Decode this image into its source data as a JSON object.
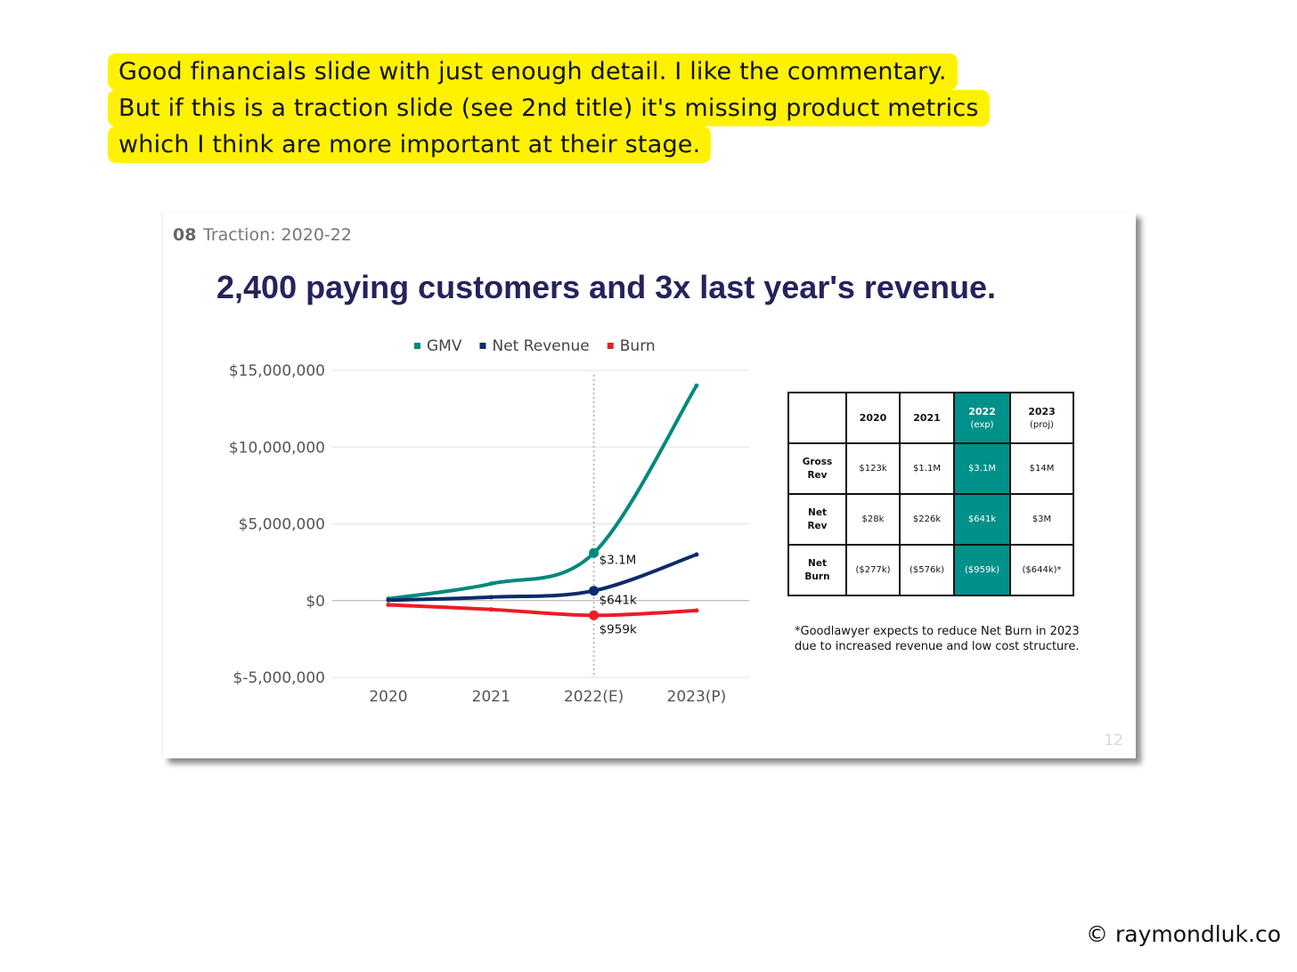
{
  "comment": {
    "lines": [
      "Good financials slide with just enough detail. I like the commentary.",
      "But if this is a traction slide (see 2nd title) it's missing product metrics",
      "which I think are more important at their stage."
    ],
    "highlight_color": "#fff200"
  },
  "slide": {
    "section_number": "08",
    "section_title": "Traction: 2020-22",
    "headline": "2,400 paying customers and 3x last year's revenue.",
    "page_number": "12",
    "table": {
      "headers": [
        {
          "label": "",
          "sub": ""
        },
        {
          "label": "2020",
          "sub": ""
        },
        {
          "label": "2021",
          "sub": ""
        },
        {
          "label": "2022",
          "sub": "(exp)"
        },
        {
          "label": "2023",
          "sub": "(proj)"
        }
      ],
      "rows": [
        {
          "label_line1": "Gross",
          "label_line2": "Rev",
          "cells": [
            "$123k",
            "$1.1M",
            "$3.1M",
            "$14M"
          ]
        },
        {
          "label_line1": "Net",
          "label_line2": "Rev",
          "cells": [
            "$28k",
            "$226k",
            "$641k",
            "$3M"
          ]
        },
        {
          "label_line1": "Net",
          "label_line2": "Burn",
          "cells": [
            "($277k)",
            "($576k)",
            "($959k)",
            "($644k)*"
          ]
        }
      ],
      "highlight_color": "#00918a"
    },
    "note_lines": [
      "*Goodlawyer expects to reduce Net Burn in 2023",
      "due to increased revenue and low cost structure."
    ]
  },
  "chart_data": {
    "type": "line",
    "categories": [
      "2020",
      "2021",
      "2022(E)",
      "2023(P)"
    ],
    "series": [
      {
        "name": "GMV",
        "color": "#00897b",
        "values": [
          123000,
          1100000,
          3100000,
          14000000
        ]
      },
      {
        "name": "Net Revenue",
        "color": "#0d2a6b",
        "values": [
          28000,
          226000,
          641000,
          3000000
        ]
      },
      {
        "name": "Burn",
        "color": "#ee1b24",
        "values": [
          -277000,
          -576000,
          -959000,
          -644000
        ]
      }
    ],
    "ylim": [
      -5000000,
      15000000
    ],
    "yticks": [
      15000000,
      10000000,
      5000000,
      0,
      -5000000
    ],
    "ytick_labels": [
      "$15,000,000",
      "$10,000,000",
      "$5,000,000",
      "$0",
      "$-5,000,000"
    ],
    "annotations": [
      {
        "series": "GMV",
        "category": "2022(E)",
        "text": "$3.1M"
      },
      {
        "series": "Net Revenue",
        "category": "2022(E)",
        "text": "$641k"
      },
      {
        "series": "Burn",
        "category": "2022(E)",
        "text": "$959k"
      }
    ],
    "legend_position": "top-center",
    "grid": true,
    "title": "",
    "xlabel": "",
    "ylabel": ""
  },
  "credit": "© raymondluk.co"
}
